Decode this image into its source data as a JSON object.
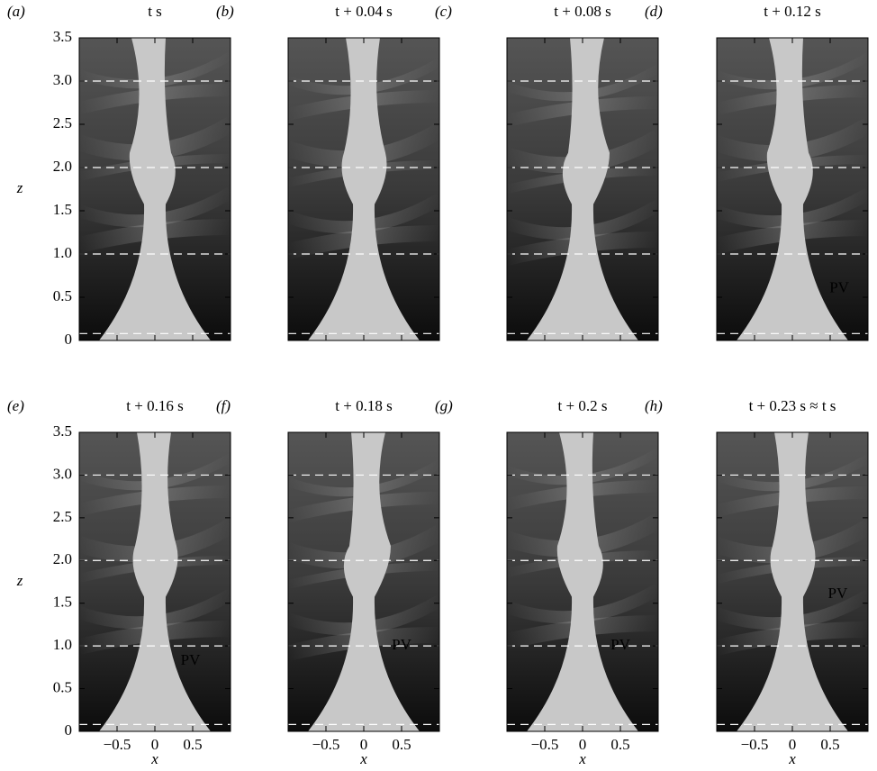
{
  "panels": [
    {
      "label": "(a)",
      "title": "t s"
    },
    {
      "label": "(b)",
      "title": "t + 0.04 s"
    },
    {
      "label": "(c)",
      "title": "t + 0.08 s"
    },
    {
      "label": "(d)",
      "title": "t + 0.12 s",
      "annotation": "PV"
    },
    {
      "label": "(e)",
      "title": "t + 0.16 s",
      "annotation": "PV"
    },
    {
      "label": "(f)",
      "title": "t + 0.18 s",
      "annotation": "PV"
    },
    {
      "label": "(g)",
      "title": "t + 0.2 s",
      "annotation": "PV"
    },
    {
      "label": "(h)",
      "title": "t + 0.23 s ≈ t s",
      "annotation": "PV"
    }
  ],
  "x_axis": {
    "label": "x",
    "lim": [
      -1,
      1
    ],
    "ticks": [
      {
        "value": -0.5,
        "label": "−0.5"
      },
      0,
      0.5
    ]
  },
  "z_axis": {
    "label": "z",
    "lim": [
      0,
      3.5
    ],
    "ticks": [
      0,
      0.5,
      {
        "value": 1,
        "label": "1.0"
      },
      1.5,
      {
        "value": 2,
        "label": "2.0"
      },
      2.5,
      {
        "value": 3,
        "label": "3.0"
      },
      3.5
    ]
  },
  "reference_lines": [
    0.08,
    1,
    2,
    3
  ]
}
